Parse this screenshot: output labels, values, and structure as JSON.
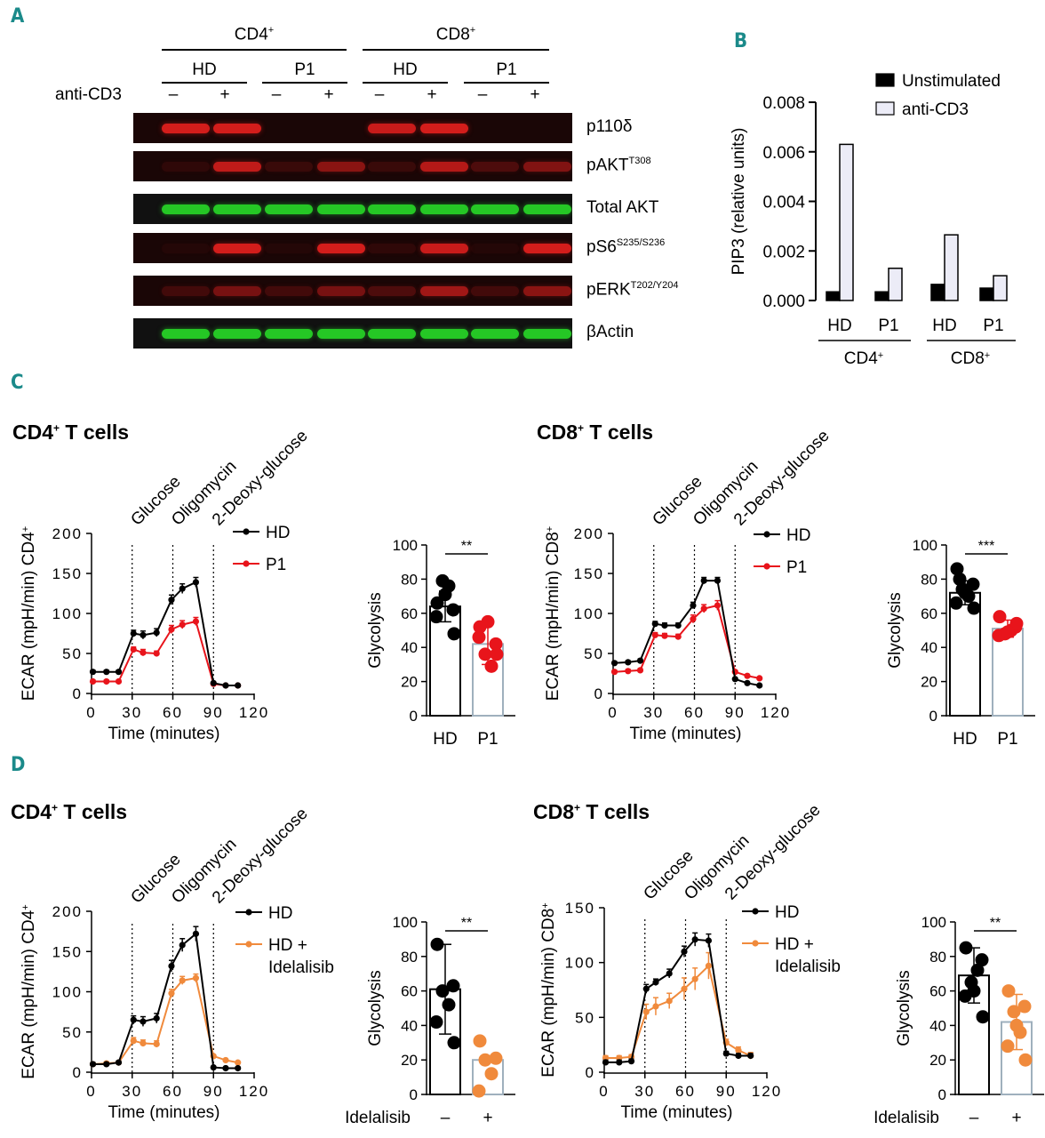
{
  "panels": {
    "A": "A",
    "B": "B",
    "C": "C",
    "D": "D"
  },
  "panelA": {
    "cell_types": [
      {
        "main": "CD4",
        "sup": "+"
      },
      {
        "main": "CD8",
        "sup": "+"
      }
    ],
    "donors": [
      "HD",
      "P1",
      "HD",
      "P1"
    ],
    "stim_label": "anti-CD3",
    "lanes": [
      "–",
      "+",
      "–",
      "+",
      "–",
      "+",
      "–",
      "+"
    ],
    "blots": [
      {
        "main": "p110δ",
        "sup": "",
        "color": "red",
        "intensity": [
          0.9,
          0.9,
          0,
          0,
          0.85,
          0.9,
          0,
          0
        ]
      },
      {
        "main": "pAKT",
        "sup": "T308",
        "color": "red",
        "intensity": [
          0.1,
          0.8,
          0.15,
          0.55,
          0.15,
          0.75,
          0.25,
          0.5
        ]
      },
      {
        "main": "Total AKT",
        "sup": "",
        "color": "green",
        "intensity": [
          0.9,
          0.9,
          0.9,
          0.9,
          0.9,
          0.9,
          0.9,
          0.9
        ]
      },
      {
        "main": "pS6",
        "sup": "S235/S236",
        "color": "red",
        "intensity": [
          0.05,
          0.9,
          0.05,
          0.9,
          0.1,
          0.85,
          0.05,
          0.9
        ]
      },
      {
        "main": "pERK",
        "sup": "T202/Y204",
        "color": "red",
        "intensity": [
          0.2,
          0.45,
          0.2,
          0.45,
          0.25,
          0.65,
          0.2,
          0.55
        ]
      },
      {
        "main": "βActin",
        "sup": "",
        "color": "green",
        "intensity": [
          0.9,
          0.9,
          0.9,
          0.9,
          0.9,
          0.9,
          0.9,
          0.9
        ]
      }
    ]
  },
  "chart_data": [
    {
      "id": "B",
      "type": "bar",
      "ylabel": "PIP3 (relative units)",
      "ylim": [
        0,
        0.008
      ],
      "yticks": [
        "0.000",
        "0.002",
        "0.004",
        "0.006",
        "0.008"
      ],
      "categories": [
        "HD",
        "P1",
        "HD",
        "P1"
      ],
      "groups": [
        {
          "main": "CD4",
          "sup": "+"
        },
        {
          "main": "CD8",
          "sup": "+"
        }
      ],
      "series": [
        {
          "name": "Unstimulated",
          "color": "#000000",
          "values": [
            0.00035,
            0.00035,
            0.00065,
            0.0005
          ]
        },
        {
          "name": "anti-CD3",
          "color": "#ececf7",
          "values": [
            0.0063,
            0.0013,
            0.00265,
            0.001
          ]
        }
      ],
      "legend": "top-right"
    },
    {
      "id": "C-CD4-line",
      "type": "line",
      "title": {
        "main": "CD4",
        "sup": "+",
        "rest": " T cells"
      },
      "xlabel": "Time (minutes)",
      "ylabel": {
        "main": "ECAR (mpH/min) CD4",
        "sup": "+"
      },
      "xlim": [
        0,
        120
      ],
      "xticks": [
        0,
        30,
        60,
        90,
        120
      ],
      "ylim": [
        0,
        200
      ],
      "yticks": [
        0,
        50,
        100,
        150,
        200
      ],
      "markers": [
        {
          "x": 30,
          "label": "Glucose"
        },
        {
          "x": 60,
          "label": "Oligomycin"
        },
        {
          "x": 90,
          "label": "2-Deoxy-glucose"
        }
      ],
      "x": [
        1,
        11,
        20,
        31,
        38,
        48,
        59,
        67,
        77,
        90,
        99,
        108
      ],
      "series": [
        {
          "name": "HD",
          "color": "#000000",
          "values": [
            27,
            27,
            27,
            75,
            73,
            76,
            117,
            131,
            139,
            13,
            10,
            10
          ],
          "err": [
            2,
            2,
            2,
            4,
            5,
            5,
            6,
            6,
            6,
            1,
            1,
            1
          ]
        },
        {
          "name": "P1",
          "color": "#e8141b",
          "values": [
            15,
            15,
            15,
            55,
            51,
            50,
            80,
            86,
            90,
            12,
            10,
            10
          ],
          "err": [
            2,
            2,
            2,
            3,
            4,
            3,
            5,
            5,
            5,
            1,
            1,
            1
          ]
        }
      ],
      "legend": "top-right"
    },
    {
      "id": "C-CD4-bar",
      "type": "bar",
      "ylabel": "Glycolysis",
      "ylim": [
        0,
        100
      ],
      "yticks": [
        0,
        20,
        40,
        60,
        80,
        100
      ],
      "categories": [
        "HD",
        "P1"
      ],
      "values": [
        64,
        42
      ],
      "sd": [
        9,
        12
      ],
      "points": [
        [
          66,
          62,
          79,
          76,
          58,
          48,
          71
        ],
        [
          52,
          42,
          36,
          29,
          46,
          36,
          55
        ]
      ],
      "colors": [
        "#000000",
        "#e8141b"
      ],
      "bar_edge": [
        "#000000",
        "#9fb0bd"
      ],
      "significance": "**"
    },
    {
      "id": "C-CD8-line",
      "type": "line",
      "title": {
        "main": "CD8",
        "sup": "+",
        "rest": " T cells"
      },
      "xlabel": "Time (minutes)",
      "ylabel": {
        "main": "ECAR (mpH/min) CD8",
        "sup": "+"
      },
      "xlim": [
        0,
        120
      ],
      "xticks": [
        0,
        30,
        60,
        90,
        120
      ],
      "ylim": [
        0,
        200
      ],
      "yticks": [
        0,
        50,
        100,
        150,
        200
      ],
      "markers": [
        {
          "x": 30,
          "label": "Glucose"
        },
        {
          "x": 60,
          "label": "Oligomycin"
        },
        {
          "x": 90,
          "label": "2-Deoxy-glucose"
        }
      ],
      "x": [
        1,
        11,
        20,
        31,
        38,
        48,
        59,
        67,
        77,
        90,
        99,
        108
      ],
      "series": [
        {
          "name": "HD",
          "color": "#000000",
          "values": [
            38,
            39,
            41,
            87,
            85,
            85,
            110,
            141,
            141,
            18,
            13,
            10
          ],
          "err": [
            2,
            2,
            2,
            3,
            3,
            3,
            4,
            4,
            4,
            1,
            1,
            1
          ]
        },
        {
          "name": "P1",
          "color": "#e8141b",
          "values": [
            27,
            28,
            29,
            73,
            72,
            71,
            93,
            106,
            110,
            27,
            22,
            19
          ],
          "err": [
            2,
            2,
            2,
            3,
            3,
            3,
            5,
            5,
            6,
            1,
            1,
            1
          ]
        }
      ],
      "legend": "top-right"
    },
    {
      "id": "C-CD8-bar",
      "type": "bar",
      "ylabel": "Glycolysis",
      "ylim": [
        0,
        100
      ],
      "yticks": [
        0,
        20,
        40,
        60,
        80,
        100
      ],
      "categories": [
        "HD",
        "P1"
      ],
      "values": [
        72,
        51
      ],
      "sd": [
        7,
        5
      ],
      "points": [
        [
          86,
          77,
          74,
          70,
          66,
          63,
          72,
          80
        ],
        [
          58,
          52,
          48,
          50,
          47,
          54,
          49
        ]
      ],
      "colors": [
        "#000000",
        "#e8141b"
      ],
      "bar_edge": [
        "#000000",
        "#9fb0bd"
      ],
      "significance": "***"
    },
    {
      "id": "D-CD4-line",
      "type": "line",
      "title": {
        "main": "CD4",
        "sup": "+",
        "rest": " T cells"
      },
      "xlabel": "Time (minutes)",
      "ylabel": {
        "main": "ECAR (mpH/min) CD4",
        "sup": "+"
      },
      "xlim": [
        0,
        120
      ],
      "xticks": [
        0,
        30,
        60,
        90,
        120
      ],
      "ylim": [
        0,
        200
      ],
      "yticks": [
        0,
        50,
        100,
        150,
        200
      ],
      "markers": [
        {
          "x": 30,
          "label": "Glucose"
        },
        {
          "x": 60,
          "label": "Oligomycin"
        },
        {
          "x": 90,
          "label": "2-Deoxy-glucose"
        }
      ],
      "x": [
        1,
        11,
        20,
        31,
        38,
        48,
        59,
        67,
        77,
        90,
        99,
        108
      ],
      "series": [
        {
          "name": "HD",
          "color": "#000000",
          "values": [
            10,
            10,
            12,
            65,
            63,
            67,
            132,
            158,
            172,
            6,
            5,
            5
          ],
          "err": [
            2,
            2,
            2,
            5,
            6,
            6,
            7,
            8,
            9,
            1,
            1,
            1
          ]
        },
        {
          "name": "HD + Idelalisib",
          "color": "#f08a3c",
          "values": [
            10,
            11,
            12,
            39,
            36,
            35,
            98,
            114,
            117,
            20,
            15,
            12
          ],
          "err": [
            2,
            2,
            2,
            4,
            4,
            4,
            5,
            5,
            5,
            1,
            1,
            1
          ]
        }
      ],
      "legend": "top-right"
    },
    {
      "id": "D-CD4-bar",
      "type": "bar",
      "ylabel": "Glycolysis",
      "ylim": [
        0,
        100
      ],
      "yticks": [
        0,
        20,
        40,
        60,
        80,
        100
      ],
      "categories": [
        "–",
        "+"
      ],
      "xlabel": "Idelalisib",
      "values": [
        61,
        20
      ],
      "sd": [
        26,
        0
      ],
      "points": [
        [
          87,
          63,
          60,
          52,
          42,
          30
        ],
        [
          31,
          21,
          20,
          12,
          2
        ]
      ],
      "colors": [
        "#000000",
        "#f08a3c"
      ],
      "bar_edge": [
        "#000000",
        "#9fb0bd"
      ],
      "significance": "**"
    },
    {
      "id": "D-CD8-line",
      "type": "line",
      "title": {
        "main": "CD8",
        "sup": "+",
        "rest": " T cells"
      },
      "xlabel": "Time (minutes)",
      "ylabel": {
        "main": "ECAR (mpH/min) CD8",
        "sup": "+"
      },
      "xlim": [
        0,
        120
      ],
      "xticks": [
        0,
        30,
        60,
        90,
        120
      ],
      "ylim": [
        0,
        150
      ],
      "yticks": [
        0,
        50,
        100,
        150
      ],
      "markers": [
        {
          "x": 30,
          "label": "Glucose"
        },
        {
          "x": 60,
          "label": "Oligomycin"
        },
        {
          "x": 90,
          "label": "2-Deoxy-glucose"
        }
      ],
      "x": [
        1,
        11,
        20,
        31,
        38,
        48,
        59,
        67,
        77,
        90,
        99,
        108
      ],
      "series": [
        {
          "name": "HD",
          "color": "#000000",
          "values": [
            9,
            9,
            10,
            76,
            82,
            90,
            110,
            121,
            120,
            17,
            15,
            15
          ],
          "err": [
            2,
            2,
            2,
            4,
            3,
            4,
            5,
            6,
            6,
            2,
            2,
            2
          ]
        },
        {
          "name": "HD + Idelalisib",
          "color": "#f08a3c",
          "values": [
            13,
            13,
            14,
            55,
            60,
            65,
            76,
            85,
            97,
            27,
            20,
            15
          ],
          "err": [
            2,
            2,
            2,
            7,
            8,
            7,
            10,
            10,
            12,
            3,
            3,
            3
          ]
        }
      ],
      "legend": "top-right"
    },
    {
      "id": "D-CD8-bar",
      "type": "bar",
      "ylabel": "Glycolysis",
      "ylim": [
        0,
        100
      ],
      "yticks": [
        0,
        20,
        40,
        60,
        80,
        100
      ],
      "categories": [
        "–",
        "+"
      ],
      "xlabel": "Idelalisib",
      "values": [
        69,
        42
      ],
      "sd": [
        16,
        16
      ],
      "points": [
        [
          85,
          78,
          65,
          72,
          57,
          45,
          60
        ],
        [
          60,
          51,
          48,
          36,
          28,
          20,
          40
        ]
      ],
      "colors": [
        "#000000",
        "#f08a3c"
      ],
      "bar_edge": [
        "#000000",
        "#9fb0bd"
      ],
      "significance": "**"
    }
  ]
}
